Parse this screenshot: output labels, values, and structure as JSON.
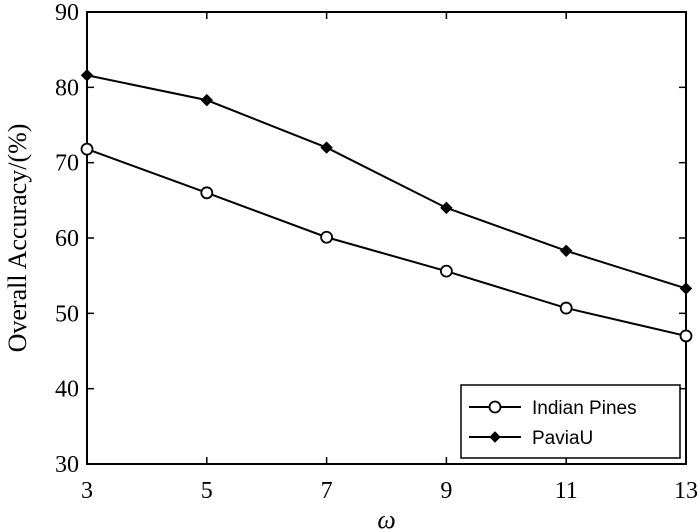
{
  "chart_data": {
    "type": "line",
    "xlabel": "ω",
    "ylabel": "Overall Accuracy/(%)",
    "x": [
      3,
      5,
      7,
      9,
      11,
      13
    ],
    "xticks": [
      "3",
      "5",
      "7",
      "9",
      "11",
      "13"
    ],
    "yticks": [
      "30",
      "40",
      "50",
      "60",
      "70",
      "80",
      "90"
    ],
    "xlim": [
      3,
      13
    ],
    "ylim": [
      30,
      90
    ],
    "grid": false,
    "legend_position": "bottom-right",
    "series": [
      {
        "name": "Indian Pines",
        "marker": "open-circle",
        "color": "#000000",
        "values": [
          71.8,
          66.0,
          60.1,
          55.6,
          50.7,
          47.0
        ]
      },
      {
        "name": "PaviaU",
        "marker": "filled-diamond",
        "color": "#000000",
        "values": [
          81.6,
          78.3,
          72.0,
          64.0,
          58.3,
          53.3
        ]
      }
    ]
  }
}
